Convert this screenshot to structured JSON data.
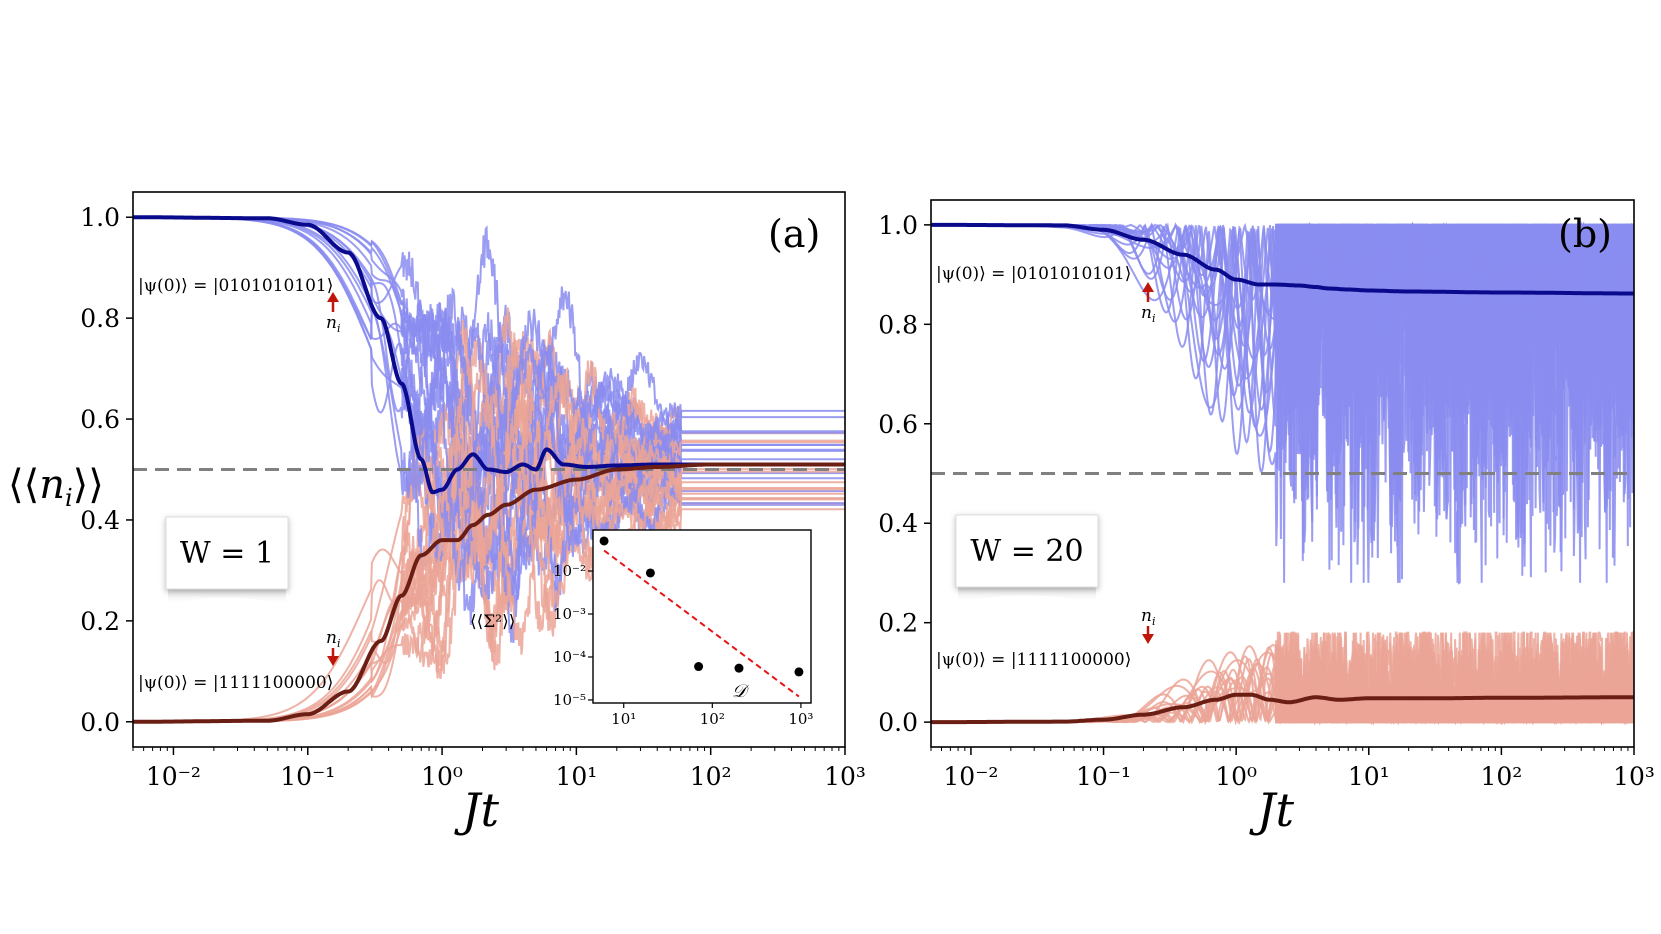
{
  "chart_data": [
    {
      "type": "line",
      "panel": "(a)",
      "disorder_label": "W = 1",
      "ylabel": "⟨⟨n_i⟩⟩",
      "xlabel": "Jt",
      "xscale": "log",
      "xlim": [
        0.005,
        1000
      ],
      "ylim": [
        -0.05,
        1.05
      ],
      "xticks": [
        0.01,
        0.1,
        1,
        10,
        100,
        1000
      ],
      "xtick_labels": [
        "10⁻²",
        "10⁻¹",
        "10⁰",
        "10¹",
        "10²",
        "10³"
      ],
      "yticks": [
        0.0,
        0.2,
        0.4,
        0.6,
        0.8,
        1.0
      ],
      "ytick_labels": [
        "0.0",
        "0.2",
        "0.4",
        "0.6",
        "0.8",
        "1.0"
      ],
      "reference_line": 0.5,
      "state_labels": {
        "upper": "|ψ(0)⟩ = |0101010101⟩",
        "lower": "|ψ(0)⟩ = |1111100000⟩",
        "site": "n",
        "site_sub": "i"
      },
      "series": [
        {
          "name": "average |0101010101⟩",
          "color": "#0a0a8c",
          "x": [
            0.005,
            0.05,
            0.1,
            0.2,
            0.35,
            0.5,
            0.7,
            0.85,
            1.0,
            1.3,
            1.7,
            2.2,
            3,
            4,
            5,
            6,
            8,
            12,
            20,
            40,
            100,
            1000
          ],
          "y": [
            1.0,
            0.998,
            0.985,
            0.93,
            0.8,
            0.67,
            0.52,
            0.455,
            0.46,
            0.5,
            0.53,
            0.5,
            0.495,
            0.51,
            0.5,
            0.54,
            0.51,
            0.505,
            0.508,
            0.51,
            0.51,
            0.51
          ]
        },
        {
          "name": "average |1111100000⟩",
          "color": "#6b1e14",
          "x": [
            0.005,
            0.05,
            0.1,
            0.2,
            0.35,
            0.5,
            0.7,
            1.0,
            1.3,
            1.7,
            2.2,
            3,
            5,
            10,
            20,
            40,
            100,
            1000
          ],
          "y": [
            0.0,
            0.002,
            0.015,
            0.06,
            0.16,
            0.25,
            0.33,
            0.36,
            0.36,
            0.39,
            0.41,
            0.43,
            0.46,
            0.48,
            0.5,
            0.505,
            0.51,
            0.51
          ]
        }
      ],
      "inset": {
        "type": "scatter",
        "ylabel": "⟨⟨Σ²⟩⟩",
        "xlabel": "𝒟",
        "xscale": "log",
        "yscale": "log",
        "xtick_labels": [
          "10¹",
          "10²",
          "10³"
        ],
        "ytick_labels": [
          "10⁻²",
          "10⁻³",
          "10⁻⁴",
          "10⁻⁵"
        ],
        "points": [
          {
            "x": 6,
            "y": 0.05
          },
          {
            "x": 20,
            "y": 0.009
          },
          {
            "x": 70,
            "y": 6e-05
          },
          {
            "x": 200,
            "y": 5.5e-05
          },
          {
            "x": 950,
            "y": 4.5e-05
          }
        ],
        "fit": {
          "x": [
            6,
            950
          ],
          "y": [
            0.03,
            1.2e-05
          ],
          "style": "dashed",
          "color": "#e8141a"
        }
      }
    },
    {
      "type": "line",
      "panel": "(b)",
      "disorder_label": "W = 20",
      "xlabel": "Jt",
      "xscale": "log",
      "xlim": [
        0.005,
        1000
      ],
      "ylim": [
        -0.05,
        1.05
      ],
      "xticks": [
        0.01,
        0.1,
        1,
        10,
        100,
        1000
      ],
      "xtick_labels": [
        "10⁻²",
        "10⁻¹",
        "10⁰",
        "10¹",
        "10²",
        "10³"
      ],
      "yticks": [
        0.0,
        0.2,
        0.4,
        0.6,
        0.8,
        1.0
      ],
      "ytick_labels": [
        "0.0",
        "0.2",
        "0.4",
        "0.6",
        "0.8",
        "1.0"
      ],
      "reference_line": 0.5,
      "state_labels": {
        "upper": "|ψ(0)⟩ = |0101010101⟩",
        "lower": "|ψ(0)⟩ = |1111100000⟩",
        "site": "n",
        "site_sub": "i"
      },
      "series": [
        {
          "name": "average |0101010101⟩",
          "color": "#0a0a8c",
          "x": [
            0.005,
            0.05,
            0.1,
            0.2,
            0.4,
            0.7,
            1.0,
            1.5,
            2,
            3,
            4,
            5,
            7,
            10,
            20,
            100,
            1000
          ],
          "y": [
            1.0,
            0.999,
            0.99,
            0.97,
            0.94,
            0.91,
            0.89,
            0.88,
            0.88,
            0.878,
            0.875,
            0.872,
            0.87,
            0.868,
            0.866,
            0.864,
            0.862
          ]
        },
        {
          "name": "average |1111100000⟩",
          "color": "#6b1e14",
          "x": [
            0.005,
            0.05,
            0.1,
            0.2,
            0.4,
            0.7,
            1.0,
            1.3,
            1.8,
            2.5,
            4,
            6,
            10,
            30,
            100,
            1000
          ],
          "y": [
            0.0,
            0.001,
            0.005,
            0.015,
            0.03,
            0.045,
            0.055,
            0.055,
            0.045,
            0.04,
            0.05,
            0.045,
            0.048,
            0.048,
            0.049,
            0.05
          ]
        }
      ]
    }
  ]
}
